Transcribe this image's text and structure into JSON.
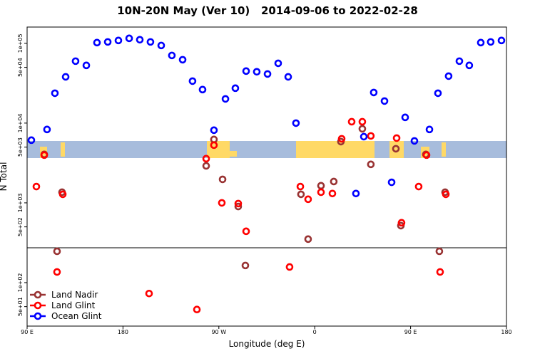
{
  "chart_data": {
    "type": "scatter",
    "title": "10N-20N May (Ver 10)   2014-09-06 to 2022-02-28",
    "xlabel": "Longitude (deg E)",
    "ylabel": "N Total",
    "xlim": [
      90,
      540
    ],
    "xticks": [
      {
        "value": 90,
        "label": "90 E"
      },
      {
        "value": 180,
        "label": "180"
      },
      {
        "value": 270,
        "label": "90 W"
      },
      {
        "value": 360,
        "label": "0"
      },
      {
        "value": 450,
        "label": "90 E"
      },
      {
        "value": 540,
        "label": "180"
      }
    ],
    "ylim": [
      28.5,
      160000
    ],
    "log_y": true,
    "yticks": [
      {
        "value": 50,
        "label": "5e+01"
      },
      {
        "value": 100,
        "label": "1e+02"
      },
      {
        "value": 500,
        "label": "5e+02"
      },
      {
        "value": 1000,
        "label": "1e+03"
      },
      {
        "value": 5000,
        "label": "5e+03"
      },
      {
        "value": 10000,
        "label": "1e+04"
      },
      {
        "value": 50000,
        "label": "5e+04"
      },
      {
        "value": 100000,
        "label": "1e+05"
      }
    ],
    "legend": "bottom-left",
    "series": [
      {
        "name": "Land Nadir",
        "color": "#993333",
        "x": [
          106.1,
          118.1,
          122.8,
          258.1,
          265.4,
          273.5,
          288.2,
          294.9,
          347.1,
          353.8,
          365.9,
          377.9,
          384.6,
          404.7,
          412.7,
          436.2,
          440.9,
          464.3,
          477.0,
          482.4
        ],
        "values": [
          4050,
          247,
          1360,
          2910,
          6240,
          1970,
          900,
          164,
          1280,
          351,
          1640,
          1850,
          5860,
          8480,
          3040,
          4770,
          518,
          4050,
          247,
          1360
        ]
      },
      {
        "name": "Land Glint",
        "color": "#ff0000",
        "x": [
          98.7,
          106.1,
          118.1,
          123.5,
          204.5,
          249.4,
          258.1,
          265.4,
          272.8,
          288.2,
          295.6,
          336.4,
          346.5,
          353.8,
          365.9,
          376.6,
          385.3,
          394.7,
          404.7,
          412.7,
          436.9,
          441.5,
          457.6,
          465.0,
          477.7,
          483.1
        ],
        "values": [
          1600,
          3970,
          136,
          1280,
          73,
          46,
          3580,
          5290,
          1000,
          980,
          440,
          157,
          1600,
          1110,
          1360,
          1310,
          6360,
          10400,
          10400,
          6910,
          6490,
          563,
          1600,
          3970,
          136,
          1280
        ]
      },
      {
        "name": "Ocean Glint",
        "color": "#0000ff",
        "x": [
          94.0,
          108.7,
          116.1,
          126.2,
          135.5,
          145.6,
          155.6,
          165.7,
          175.7,
          185.8,
          195.8,
          205.8,
          215.9,
          225.9,
          236.0,
          245.3,
          254.7,
          265.4,
          276.2,
          285.5,
          295.6,
          305.6,
          315.7,
          325.7,
          335.1,
          342.4,
          398.7,
          406.1,
          415.4,
          425.5,
          432.2,
          444.9,
          453.6,
          467.7,
          475.7,
          485.7,
          495.8,
          505.1,
          515.9,
          525.2,
          535.3
        ],
        "values": [
          6110,
          8320,
          23700,
          38000,
          59800,
          52900,
          102100,
          104200,
          108600,
          115500,
          111000,
          104200,
          94000,
          70500,
          62300,
          33600,
          26300,
          8150,
          20100,
          27400,
          44900,
          44000,
          41300,
          56200,
          38000,
          10000,
          1310,
          6760,
          24200,
          18900,
          1810,
          11800,
          5980,
          8320,
          23700,
          38800,
          59800,
          52900,
          102100,
          104200,
          108600
        ]
      }
    ]
  }
}
